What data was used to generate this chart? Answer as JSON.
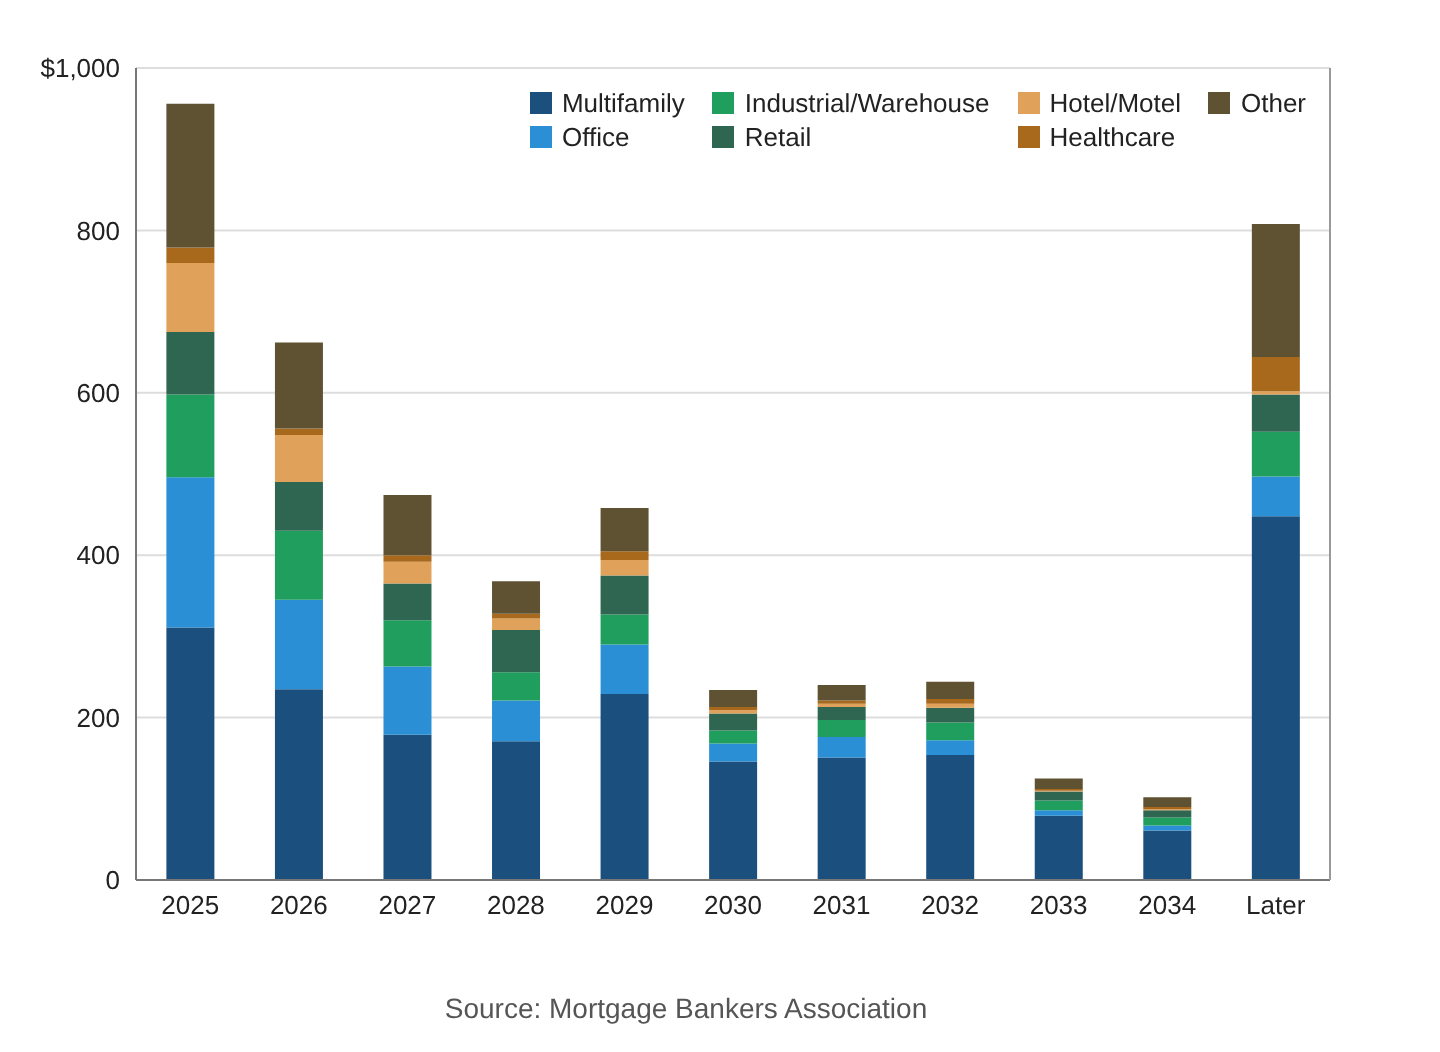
{
  "chart_data": {
    "type": "bar",
    "stacked": true,
    "categories": [
      "2025",
      "2026",
      "2027",
      "2028",
      "2029",
      "2030",
      "2031",
      "2032",
      "2033",
      "2034",
      "Later"
    ],
    "series": [
      {
        "name": "Multifamily",
        "color": "#1a4f7e",
        "values": [
          311,
          235,
          179,
          171,
          229,
          146,
          151,
          154,
          79,
          61,
          448
        ]
      },
      {
        "name": "Office",
        "color": "#2a8fd4",
        "values": [
          185,
          110,
          84,
          50,
          61,
          22,
          25,
          18,
          7,
          6,
          49
        ]
      },
      {
        "name": "Industrial/Warehouse",
        "color": "#1f9e5e",
        "values": [
          102,
          85,
          57,
          35,
          37,
          16,
          21,
          22,
          12,
          10,
          55
        ]
      },
      {
        "name": "Retail",
        "color": "#2f6652",
        "values": [
          77,
          60,
          45,
          52,
          48,
          21,
          16,
          18,
          11,
          9,
          46
        ]
      },
      {
        "name": "Hotel/Motel",
        "color": "#e0a25a",
        "values": [
          85,
          58,
          27,
          14,
          19,
          4,
          4,
          5,
          1,
          1,
          4
        ]
      },
      {
        "name": "Healthcare",
        "color": "#a8691c",
        "values": [
          19,
          8,
          8,
          6,
          11,
          4,
          4,
          6,
          2,
          3,
          42
        ]
      },
      {
        "name": "Other",
        "color": "#5f5232",
        "values": [
          177,
          106,
          74,
          40,
          53,
          21,
          19,
          21,
          13,
          12,
          164
        ]
      }
    ],
    "ylim": [
      0,
      1000
    ],
    "yticks": [
      0,
      200,
      400,
      600,
      800,
      {
        "value": 1000,
        "label": "$1,000"
      }
    ],
    "grid": "y",
    "legend": "top right",
    "annotations": [
      "Source: Mortgage Bankers Association"
    ]
  }
}
